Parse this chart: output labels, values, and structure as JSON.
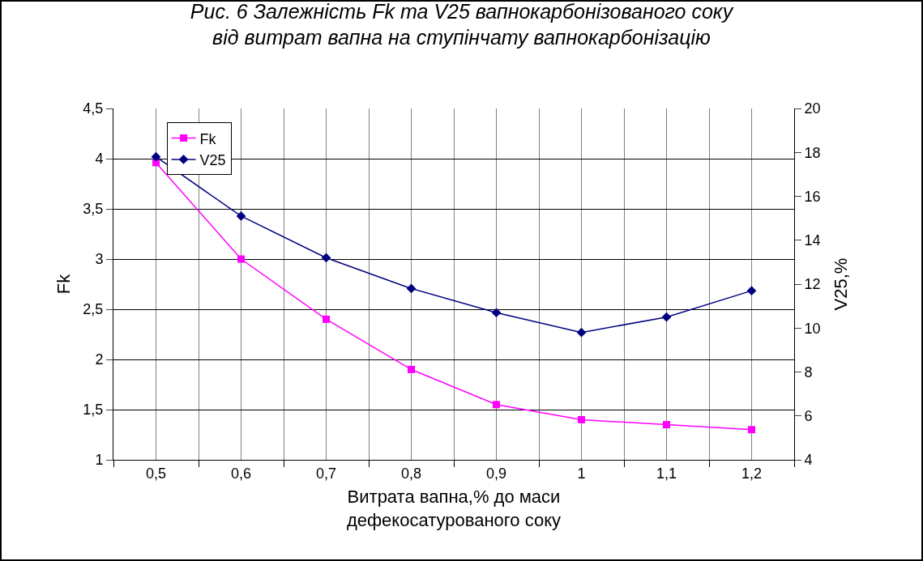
{
  "chart_data": {
    "type": "line",
    "title": "Рис. 6 Залежність Fk та V25 вапнокарбонізованого соку\nвід витрат вапна на ступінчату вапнокарбонізацію",
    "xlabel": "Витрата вапна,% до маси\nдефекосатурованого соку",
    "ylabel": "Fk",
    "y2label": "V25,%",
    "categories": [
      "0,5",
      "0,6",
      "0,7",
      "0,8",
      "0,9",
      "1",
      "1,1",
      "1,2"
    ],
    "series": [
      {
        "name": "Fk",
        "color": "#ff00ff",
        "marker": "square",
        "values": [
          3.96,
          3.0,
          2.4,
          1.9,
          1.55,
          1.4,
          1.35,
          1.3
        ]
      },
      {
        "name": "V25",
        "color": "#000080",
        "marker": "diamond",
        "axis": "y2",
        "values": [
          17.8,
          15.1,
          13.2,
          11.8,
          10.7,
          9.8,
          10.5,
          11.7
        ]
      }
    ],
    "ylim": [
      1,
      4.5
    ],
    "yticks": [
      1,
      {
        "value": 1.5,
        "label": "1,5"
      },
      2,
      {
        "value": 2.5,
        "label": "2,5"
      },
      3,
      {
        "value": 3.5,
        "label": "3,5"
      },
      4,
      {
        "value": 4.5,
        "label": "4,5"
      }
    ],
    "y2lim": [
      4,
      20
    ],
    "y2ticks": [
      4,
      6,
      8,
      10,
      12,
      14,
      16,
      18,
      20
    ],
    "grid": true,
    "legend": "top left"
  }
}
